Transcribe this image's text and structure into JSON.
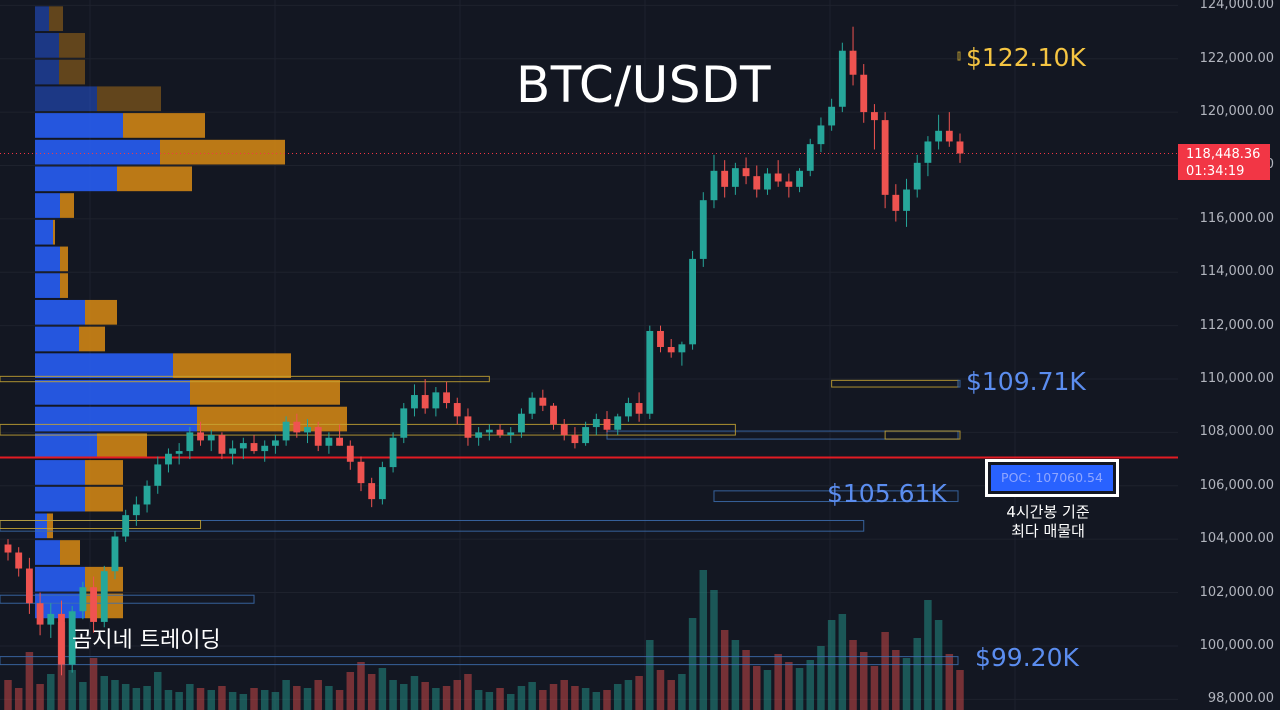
{
  "chart_title": "BTC/USDT",
  "watermark": "곰지네 트레이딩",
  "current_price": {
    "price": "118,448.36",
    "countdown": "01:34:19",
    "color": "#f23645"
  },
  "levels": [
    {
      "label": "$122.10K",
      "color": "#f5c542"
    },
    {
      "label": "$109.71K",
      "color": "#5b8def"
    },
    {
      "label": "$105.61K",
      "color": "#5b8def"
    },
    {
      "label": "$99.20K",
      "color": "#5b8def"
    }
  ],
  "poc": {
    "label": "POC: 107060.54",
    "note_line1": "4시간봉 기준",
    "note_line2": "최다 매물대",
    "line_color": "#e31b23",
    "value": 107060.54
  },
  "axis": {
    "tick_labels": [
      "124,000.00",
      "122,000.00",
      "120,000.00",
      "118,000.00",
      "116,000.00",
      "114,000.00",
      "112,000.00",
      "110,000.00",
      "108,000.00",
      "106,000.00",
      "104,000.00",
      "102,000.00",
      "100,000.00",
      "98,000.00"
    ]
  },
  "colors": {
    "bull": "#26a69a",
    "bear": "#ef5350",
    "volume_profile_buy": "#2962ff",
    "volume_profile_sell": "#d98b14",
    "background": "#131722"
  },
  "chart_data": {
    "type": "candlestick",
    "y_range": [
      97600,
      124200
    ],
    "candles": [
      [
        103800,
        104000,
        103200,
        103500
      ],
      [
        103500,
        103700,
        102600,
        102900
      ],
      [
        102900,
        103300,
        101200,
        101600
      ],
      [
        101600,
        102000,
        100400,
        100800
      ],
      [
        100800,
        101600,
        100300,
        101200
      ],
      [
        101200,
        101700,
        98900,
        99300
      ],
      [
        99300,
        101500,
        99000,
        101300
      ],
      [
        101300,
        102400,
        101000,
        102200
      ],
      [
        102200,
        102600,
        100500,
        100900
      ],
      [
        100900,
        103000,
        100700,
        102800
      ],
      [
        102800,
        104300,
        102500,
        104100
      ],
      [
        104100,
        105100,
        103900,
        104900
      ],
      [
        104900,
        105600,
        104500,
        105300
      ],
      [
        105300,
        106200,
        105000,
        106000
      ],
      [
        106000,
        107100,
        105700,
        106800
      ],
      [
        106800,
        107400,
        106500,
        107200
      ],
      [
        107200,
        107600,
        106800,
        107300
      ],
      [
        107300,
        108200,
        107000,
        108000
      ],
      [
        108000,
        108400,
        107500,
        107700
      ],
      [
        107700,
        108100,
        107300,
        107900
      ],
      [
        107900,
        108000,
        107000,
        107200
      ],
      [
        107200,
        107700,
        106800,
        107400
      ],
      [
        107400,
        107800,
        107000,
        107600
      ],
      [
        107600,
        107900,
        107200,
        107300
      ],
      [
        107300,
        107700,
        106900,
        107500
      ],
      [
        107500,
        107900,
        107200,
        107700
      ],
      [
        107700,
        108600,
        107500,
        108400
      ],
      [
        108400,
        108700,
        107800,
        108000
      ],
      [
        108000,
        108500,
        107600,
        108200
      ],
      [
        108200,
        108400,
        107300,
        107500
      ],
      [
        107500,
        108000,
        107200,
        107800
      ],
      [
        107800,
        108300,
        107500,
        107500
      ],
      [
        107500,
        107700,
        106600,
        106900
      ],
      [
        106900,
        107100,
        105800,
        106100
      ],
      [
        106100,
        106300,
        105200,
        105500
      ],
      [
        105500,
        106900,
        105300,
        106700
      ],
      [
        106700,
        108000,
        106500,
        107800
      ],
      [
        107800,
        109100,
        107600,
        108900
      ],
      [
        108900,
        109800,
        108600,
        109400
      ],
      [
        109400,
        110000,
        108700,
        108900
      ],
      [
        108900,
        109700,
        108600,
        109500
      ],
      [
        109500,
        109900,
        108900,
        109100
      ],
      [
        109100,
        109300,
        108300,
        108600
      ],
      [
        108600,
        108900,
        107500,
        107800
      ],
      [
        107800,
        108200,
        107500,
        108000
      ],
      [
        108000,
        108300,
        107700,
        108100
      ],
      [
        108100,
        108300,
        107800,
        107900
      ],
      [
        107900,
        108200,
        107600,
        108000
      ],
      [
        108000,
        108900,
        107800,
        108700
      ],
      [
        108700,
        109500,
        108500,
        109300
      ],
      [
        109300,
        109600,
        108800,
        109000
      ],
      [
        109000,
        109100,
        108100,
        108300
      ],
      [
        108300,
        108500,
        107700,
        107900
      ],
      [
        107900,
        108200,
        107400,
        107600
      ],
      [
        107600,
        108400,
        107500,
        108200
      ],
      [
        108200,
        108700,
        107900,
        108500
      ],
      [
        108500,
        108800,
        108000,
        108100
      ],
      [
        108100,
        108700,
        107900,
        108600
      ],
      [
        108600,
        109300,
        108400,
        109100
      ],
      [
        109100,
        109500,
        108400,
        108700
      ],
      [
        108700,
        112000,
        108500,
        111800
      ],
      [
        111800,
        112000,
        111000,
        111200
      ],
      [
        111200,
        111500,
        110800,
        111000
      ],
      [
        111000,
        111400,
        110500,
        111300
      ],
      [
        111300,
        114800,
        111100,
        114500
      ],
      [
        114500,
        117000,
        114200,
        116700
      ],
      [
        116700,
        118400,
        116400,
        117800
      ],
      [
        117800,
        118200,
        116800,
        117200
      ],
      [
        117200,
        118100,
        116900,
        117900
      ],
      [
        117900,
        118300,
        117300,
        117600
      ],
      [
        117600,
        118000,
        116800,
        117100
      ],
      [
        117100,
        117900,
        116900,
        117700
      ],
      [
        117700,
        118200,
        117200,
        117400
      ],
      [
        117400,
        117700,
        116800,
        117200
      ],
      [
        117200,
        117900,
        117000,
        117800
      ],
      [
        117800,
        119000,
        117600,
        118800
      ],
      [
        118800,
        119800,
        118500,
        119500
      ],
      [
        119500,
        120500,
        119300,
        120200
      ],
      [
        120200,
        122600,
        120000,
        122300
      ],
      [
        122300,
        123200,
        121000,
        121400
      ],
      [
        121400,
        121800,
        119600,
        120000
      ],
      [
        120000,
        120300,
        118600,
        119700
      ],
      [
        119700,
        120000,
        116400,
        116900
      ],
      [
        116900,
        117300,
        115900,
        116300
      ],
      [
        116300,
        117500,
        115700,
        117100
      ],
      [
        117100,
        118400,
        116800,
        118100
      ],
      [
        118100,
        119100,
        117600,
        118900
      ],
      [
        118900,
        119900,
        118600,
        119300
      ],
      [
        119300,
        120000,
        118700,
        118900
      ],
      [
        118900,
        119200,
        118100,
        118448
      ]
    ],
    "volumes": [
      30,
      22,
      58,
      26,
      36,
      88,
      40,
      28,
      52,
      34,
      30,
      26,
      22,
      24,
      38,
      20,
      18,
      26,
      22,
      20,
      24,
      18,
      16,
      22,
      20,
      18,
      30,
      24,
      22,
      30,
      24,
      20,
      38,
      48,
      36,
      42,
      30,
      26,
      34,
      28,
      22,
      24,
      30,
      36,
      20,
      18,
      22,
      16,
      24,
      28,
      20,
      26,
      30,
      24,
      22,
      18,
      20,
      26,
      30,
      34,
      70,
      40,
      30,
      36,
      92,
      140,
      120,
      80,
      70,
      60,
      44,
      40,
      56,
      48,
      42,
      50,
      64,
      90,
      96,
      70,
      58,
      44,
      78,
      60,
      52,
      72,
      110,
      90,
      56,
      40
    ]
  },
  "volume_profile_rows": [
    {
      "price": 123500,
      "buy": 14,
      "sell": 14
    },
    {
      "price": 122500,
      "buy": 24,
      "sell": 26
    },
    {
      "price": 121500,
      "buy": 24,
      "sell": 26
    },
    {
      "price": 120500,
      "buy": 62,
      "sell": 64
    },
    {
      "price": 119500,
      "buy": 88,
      "sell": 82
    },
    {
      "price": 118500,
      "buy": 125,
      "sell": 125
    },
    {
      "price": 117500,
      "buy": 82,
      "sell": 75
    },
    {
      "price": 116500,
      "buy": 25,
      "sell": 14
    },
    {
      "price": 115500,
      "buy": 18,
      "sell": 2
    },
    {
      "price": 114500,
      "buy": 25,
      "sell": 8
    },
    {
      "price": 113500,
      "buy": 25,
      "sell": 8
    },
    {
      "price": 112500,
      "buy": 50,
      "sell": 32
    },
    {
      "price": 111500,
      "buy": 44,
      "sell": 26
    },
    {
      "price": 110500,
      "buy": 138,
      "sell": 118
    },
    {
      "price": 109500,
      "buy": 155,
      "sell": 150
    },
    {
      "price": 108500,
      "buy": 162,
      "sell": 150
    },
    {
      "price": 107500,
      "buy": 62,
      "sell": 50
    },
    {
      "price": 106500,
      "buy": 50,
      "sell": 38
    },
    {
      "price": 105500,
      "buy": 50,
      "sell": 38
    },
    {
      "price": 104500,
      "buy": 12,
      "sell": 6
    },
    {
      "price": 103500,
      "buy": 25,
      "sell": 20
    },
    {
      "price": 102500,
      "buy": 50,
      "sell": 38
    },
    {
      "price": 101500,
      "buy": 50,
      "sell": 38
    }
  ],
  "zones": [
    {
      "top": 122250,
      "bottom": 121950,
      "start": 141,
      "end": 1000,
      "color": "#c8a632"
    },
    {
      "top": 109950,
      "bottom": 109700,
      "start": 77,
      "end": 1000,
      "color": "#c8a632"
    },
    {
      "top": 109950,
      "bottom": 109700,
      "start": 113,
      "end": 1000,
      "color": "#3d6fb0"
    },
    {
      "top": 108050,
      "bottom": 107750,
      "start": 56,
      "end": 1000,
      "color": "#3d6fb0"
    },
    {
      "top": 108050,
      "bottom": 107750,
      "start": 82,
      "end": 96,
      "color": "#c8a632"
    },
    {
      "top": 105810,
      "bottom": 105410,
      "start": 66,
      "end": 1000,
      "color": "#3d6fb0"
    },
    {
      "top": 104700,
      "bottom": 104300,
      "start": 0,
      "end": 80,
      "color": "#3d6fb0"
    },
    {
      "top": 110100,
      "bottom": 109900,
      "start": 0,
      "end": 45,
      "color": "#c8a632"
    },
    {
      "top": 108300,
      "bottom": 107900,
      "start": 0,
      "end": 68,
      "color": "#c8a632"
    },
    {
      "top": 101900,
      "bottom": 101600,
      "start": 0,
      "end": 23,
      "color": "#3d6fb0"
    },
    {
      "top": 104700,
      "bottom": 104400,
      "start": 0,
      "end": 18,
      "color": "#c8a632"
    },
    {
      "top": 99600,
      "bottom": 99300,
      "start": 0,
      "end": 1000,
      "color": "#3d6fb0"
    }
  ]
}
